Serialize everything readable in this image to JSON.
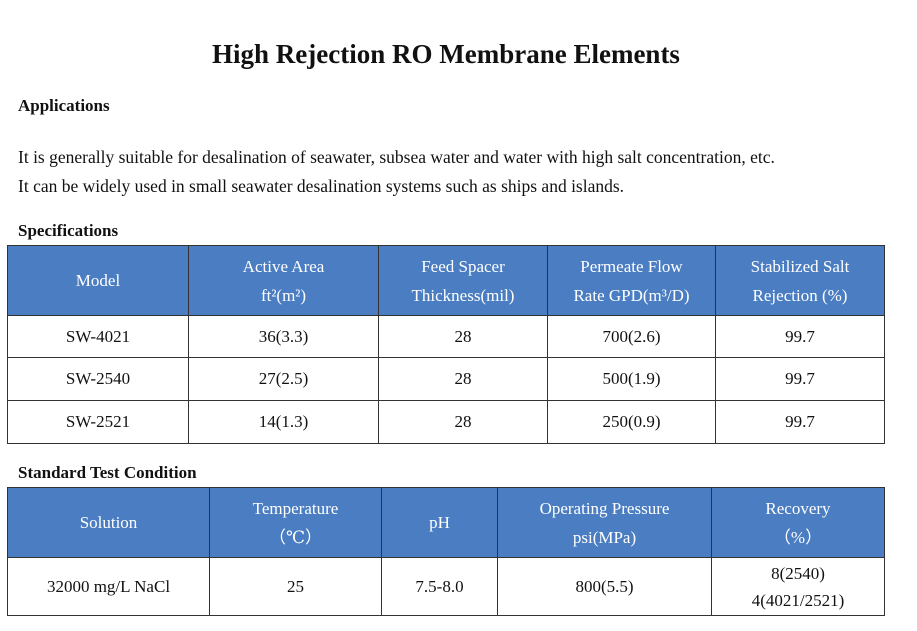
{
  "title": "High Rejection RO Membrane Elements",
  "applications": {
    "heading": "Applications",
    "lines": [
      "It is generally suitable for desalination of seawater, subsea water and water with high salt concentration, etc.",
      "It can be widely used in small seawater desalination systems such as ships and islands."
    ]
  },
  "specifications": {
    "heading": "Specifications",
    "colors": {
      "header_bg": "#4a7dc1",
      "header_text": "#ffffff"
    },
    "headers": [
      {
        "line1": "Model",
        "line2": ""
      },
      {
        "line1": "Active Area",
        "line2": "ft²(m²)"
      },
      {
        "line1": "Feed Spacer",
        "line2": "Thickness(mil)"
      },
      {
        "line1": "Permeate Flow",
        "line2": "Rate GPD(m³/D)"
      },
      {
        "line1": "Stabilized Salt",
        "line2": "Rejection (%)"
      }
    ],
    "rows": [
      [
        "SW-4021",
        "36(3.3)",
        "28",
        "700(2.6)",
        "99.7"
      ],
      [
        "SW-2540",
        "27(2.5)",
        "28",
        "500(1.9)",
        "99.7"
      ],
      [
        "SW-2521",
        "14(1.3)",
        "28",
        "250(0.9)",
        "99.7"
      ]
    ]
  },
  "test_condition": {
    "heading": "Standard Test Condition",
    "headers": [
      {
        "line1": "Solution",
        "line2": ""
      },
      {
        "line1": "Temperature",
        "line2": "（℃）"
      },
      {
        "line1": "pH",
        "line2": ""
      },
      {
        "line1": "Operating Pressure",
        "line2": "psi(MPa)"
      },
      {
        "line1": "Recovery",
        "line2": "（%）"
      }
    ],
    "row": {
      "solution": "32000 mg/L NaCl",
      "temperature": "25",
      "ph": "7.5-8.0",
      "pressure": "800(5.5)",
      "recovery": [
        "8(2540)",
        "4(4021/2521)"
      ]
    }
  }
}
